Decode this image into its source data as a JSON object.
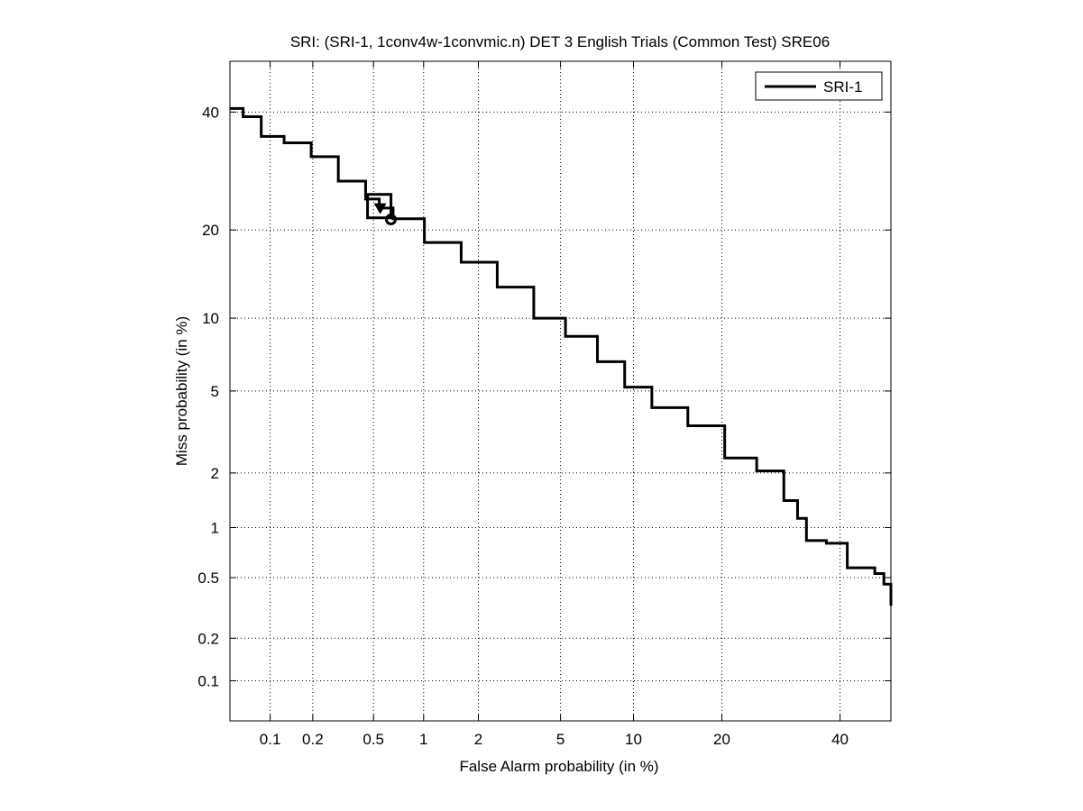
{
  "chart_data": {
    "type": "line",
    "title": "SRI: (SRI-1, 1conv4w-1convmic.n) DET 3 English Trials (Common Test) SRE06",
    "xlabel": "False Alarm probability (in %)",
    "ylabel": "Miss probability (in %)",
    "x_scale": "probit (normal deviate)",
    "y_scale": "probit (normal deviate)",
    "xlim": [
      0.05,
      50
    ],
    "ylim": [
      0.05,
      50
    ],
    "x_ticks": [
      0.1,
      0.2,
      0.5,
      1,
      2,
      5,
      10,
      20,
      40
    ],
    "x_tick_labels": [
      "0.1",
      "0.2",
      "0.5",
      "1",
      "2",
      "5",
      "10",
      "20",
      "40"
    ],
    "y_ticks": [
      0.1,
      0.2,
      0.5,
      1,
      2,
      5,
      10,
      20,
      40
    ],
    "y_tick_labels": [
      "0.1",
      "0.2",
      "0.5",
      "1",
      "2",
      "5",
      "10",
      "20",
      "40"
    ],
    "grid": true,
    "legend_position": "top-right",
    "series": [
      {
        "name": "SRI-1",
        "color": "#000000",
        "x": [
          0.049,
          0.063,
          0.086,
          0.126,
          0.195,
          0.297,
          0.446,
          0.543,
          0.66,
          1.01,
          1.62,
          2.5,
          3.77,
          5.26,
          7.2,
          9.25,
          11.7,
          15.6,
          20.4,
          25.2,
          29.7,
          32.1,
          33.7,
          37.4,
          41.4,
          46.8,
          48.6,
          50
        ],
        "y": [
          40.7,
          39.1,
          35.4,
          34.2,
          31.7,
          27.5,
          24.6,
          23.2,
          21.6,
          18.3,
          15.8,
          13.0,
          10.0,
          8.5,
          6.7,
          5.2,
          4.2,
          3.45,
          2.39,
          2.05,
          1.42,
          1.13,
          0.84,
          0.81,
          0.575,
          0.53,
          0.455,
          0.33
        ]
      }
    ],
    "markers": [
      {
        "shape": "square",
        "x": 0.543,
        "y": 23.5
      },
      {
        "shape": "triangle-down",
        "x": 0.55,
        "y": 23.1
      },
      {
        "shape": "circle",
        "x": 0.64,
        "y": 21.5
      }
    ]
  }
}
